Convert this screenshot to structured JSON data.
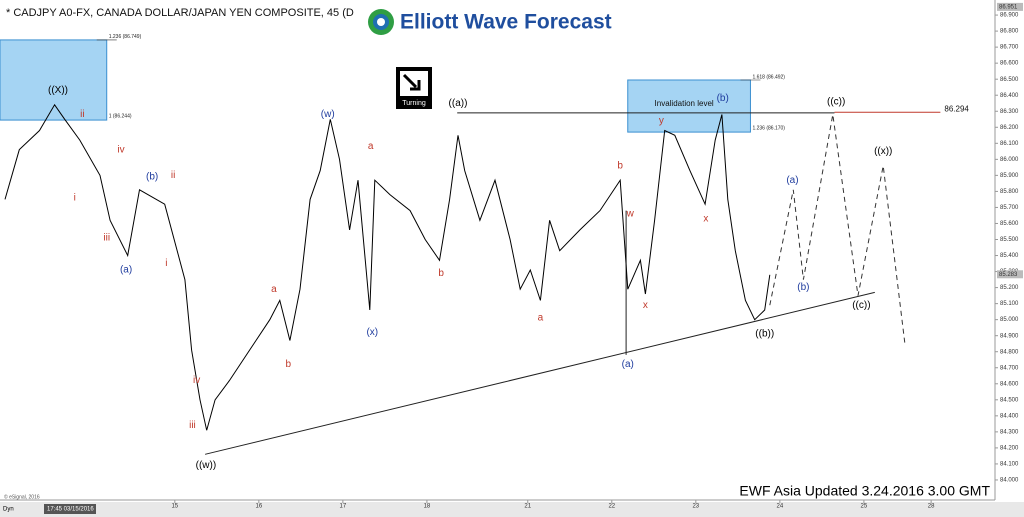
{
  "chart_data": {
    "type": "line",
    "title": "* CADJPY A0-FX, CANADA DOLLAR/JAPAN YEN COMPOSITE, 45 (D",
    "logo": "Elliott Wave Forecast",
    "badge": "Turning",
    "footer": "EWF Asia Updated 3.24.2016 3.00 GMT",
    "copyright": "© eSignal, 2016",
    "toolbar": [
      "Dyn",
      "17:45 03/15/2016"
    ],
    "x": [
      -1.02,
      -0.85,
      -0.61,
      -0.43,
      -0.31,
      -0.13,
      0.11,
      0.23,
      0.44,
      0.58,
      0.88,
      1.12,
      1.2,
      1.3,
      1.38,
      1.48,
      1.65,
      1.89,
      2.13,
      2.25,
      2.37,
      2.49,
      2.61,
      2.73,
      2.85,
      2.96,
      3.08,
      3.18,
      3.32,
      3.38,
      3.56,
      3.8,
      3.98,
      4.15,
      4.27,
      4.37,
      4.45,
      4.63,
      4.81,
      4.99,
      5.11,
      5.23,
      5.35,
      5.46,
      5.58,
      5.82,
      6.06,
      6.3,
      6.39,
      6.54,
      6.6,
      6.71,
      6.83,
      6.95,
      7.13,
      7.31,
      7.43,
      7.51,
      7.58,
      7.67,
      7.79,
      7.9,
      8.02,
      8.08
    ],
    "series": [
      {
        "color": "#000000",
        "values": [
          85.75,
          86.06,
          86.18,
          86.34,
          86.25,
          86.12,
          85.9,
          85.62,
          85.4,
          85.81,
          85.72,
          85.25,
          84.81,
          84.5,
          84.31,
          84.5,
          84.62,
          84.81,
          85,
          85.12,
          84.87,
          85.19,
          85.75,
          85.93,
          86.25,
          86,
          85.56,
          85.87,
          85.06,
          85.87,
          85.78,
          85.68,
          85.5,
          85.37,
          85.75,
          86.15,
          85.93,
          85.62,
          85.87,
          85.5,
          85.19,
          85.31,
          85.12,
          85.62,
          85.43,
          85.56,
          85.68,
          85.87,
          85.19,
          85.37,
          85.16,
          85.62,
          86.18,
          86.15,
          85.93,
          85.72,
          86.12,
          86.28,
          85.75,
          85.43,
          85.12,
          85,
          85.06,
          85.28
        ]
      }
    ],
    "projection": {
      "color": "#333333",
      "x": [
        8.08,
        8.36,
        8.48,
        8.83,
        9.13,
        9.43,
        9.69
      ],
      "values": [
        85.09,
        85.81,
        85.25,
        86.28,
        85.15,
        85.96,
        84.84
      ]
    },
    "xlim": [
      -1.08,
      10.76
    ],
    "ylim": [
      83.875,
      86.994
    ],
    "xticks": [
      {
        "value": 1,
        "label": "15"
      },
      {
        "value": 2,
        "label": "16"
      },
      {
        "value": 3,
        "label": "17"
      },
      {
        "value": 4,
        "label": "18"
      },
      {
        "value": 5.2,
        "label": "21"
      },
      {
        "value": 6.2,
        "label": "22"
      },
      {
        "value": 7.2,
        "label": "23"
      },
      {
        "value": 8.2,
        "label": "24"
      },
      {
        "value": 9.2,
        "label": "25"
      },
      {
        "value": 10,
        "label": "28"
      }
    ],
    "yticks": [
      {
        "value": 86.9,
        "label": "86.900"
      },
      {
        "value": 86.8,
        "label": "86.800"
      },
      {
        "value": 86.7,
        "label": "86.700"
      },
      {
        "value": 86.6,
        "label": "86.600"
      },
      {
        "value": 86.5,
        "label": "86.500"
      },
      {
        "value": 86.4,
        "label": "86.400"
      },
      {
        "value": 86.3,
        "label": "86.300"
      },
      {
        "value": 86.2,
        "label": "86.200"
      },
      {
        "value": 86.1,
        "label": "86.100"
      },
      {
        "value": 86,
        "label": "86.000"
      },
      {
        "value": 85.9,
        "label": "85.900"
      },
      {
        "value": 85.8,
        "label": "85.800"
      },
      {
        "value": 85.7,
        "label": "85.700"
      },
      {
        "value": 85.6,
        "label": "85.600"
      },
      {
        "value": 85.5,
        "label": "85.500"
      },
      {
        "value": 85.4,
        "label": "85.400"
      },
      {
        "value": 85.3,
        "label": "85.300"
      },
      {
        "value": 85.2,
        "label": "85.200"
      },
      {
        "value": 85.1,
        "label": "85.100"
      },
      {
        "value": 85,
        "label": "85.000"
      },
      {
        "value": 84.9,
        "label": "84.900"
      },
      {
        "value": 84.8,
        "label": "84.800"
      },
      {
        "value": 84.7,
        "label": "84.700"
      },
      {
        "value": 84.6,
        "label": "84.600"
      },
      {
        "value": 84.5,
        "label": "84.500"
      },
      {
        "value": 84.4,
        "label": "84.400"
      },
      {
        "value": 84.3,
        "label": "84.300"
      },
      {
        "value": 84.2,
        "label": "84.200"
      },
      {
        "value": 84.1,
        "label": "84.100"
      },
      {
        "value": 84,
        "label": "84.000"
      }
    ],
    "price_tags": [
      86.951,
      85.283
    ],
    "trendlines": [
      {
        "x": [
          1.36,
          9.33
        ],
        "values": [
          84.16,
          85.17
        ]
      },
      {
        "x": [
          6.37,
          6.37
        ],
        "values": [
          85.68,
          84.78
        ]
      },
      {
        "x": [
          4.36,
          8.85
        ],
        "values": [
          86.29,
          86.29
        ]
      }
    ],
    "level": {
      "x": [
        8.85,
        10.11
      ],
      "value": 86.294,
      "color": "#c0392b"
    },
    "zones": [
      {
        "x": [
          -1.08,
          0.19
        ],
        "y": [
          86.245,
          86.745
        ],
        "top_label": "1.236 (86.749)",
        "bottom_label": "1 (86.244)"
      },
      {
        "x": [
          6.39,
          7.85
        ],
        "y": [
          86.17,
          86.495
        ],
        "top_label": "1.618 (86.492)",
        "label": "Invalidation level",
        "bottom_label": "1.236 (86.170)"
      }
    ],
    "annotations": [
      {
        "label": "((X))",
        "color": "#000000",
        "x": -0.39,
        "y": 86.43
      },
      {
        "label": "ii",
        "color": "#c0392b",
        "x": -0.1,
        "y": 86.28
      },
      {
        "label": "i",
        "color": "#c0392b",
        "x": -0.19,
        "y": 85.76
      },
      {
        "label": "iv",
        "color": "#c0392b",
        "x": 0.36,
        "y": 86.06
      },
      {
        "label": "iii",
        "color": "#c0392b",
        "x": 0.19,
        "y": 85.51
      },
      {
        "label": "(a)",
        "color": "#1f3c9e",
        "x": 0.42,
        "y": 85.31
      },
      {
        "label": "(b)",
        "color": "#1f3c9e",
        "x": 0.73,
        "y": 85.89
      },
      {
        "label": "ii",
        "color": "#c0392b",
        "x": 0.98,
        "y": 85.9
      },
      {
        "label": "i",
        "color": "#c0392b",
        "x": 0.9,
        "y": 85.35
      },
      {
        "label": "iv",
        "color": "#c0392b",
        "x": 1.26,
        "y": 84.62
      },
      {
        "label": "iii",
        "color": "#c0392b",
        "x": 1.21,
        "y": 84.34
      },
      {
        "label": "((w))",
        "color": "#000000",
        "x": 1.37,
        "y": 84.09
      },
      {
        "label": "a",
        "color": "#c0392b",
        "x": 2.18,
        "y": 85.19
      },
      {
        "label": "b",
        "color": "#c0392b",
        "x": 2.35,
        "y": 84.72
      },
      {
        "label": "(w)",
        "color": "#1f3c9e",
        "x": 2.82,
        "y": 86.28
      },
      {
        "label": "a",
        "color": "#c0392b",
        "x": 3.33,
        "y": 86.08
      },
      {
        "label": "(x)",
        "color": "#1f3c9e",
        "x": 3.35,
        "y": 84.92
      },
      {
        "label": "((a))",
        "color": "#000000",
        "x": 4.37,
        "y": 86.35
      },
      {
        "label": "b",
        "color": "#c0392b",
        "x": 4.17,
        "y": 85.29
      },
      {
        "label": "a",
        "color": "#c0392b",
        "x": 5.35,
        "y": 85.01
      },
      {
        "label": "b",
        "color": "#c0392b",
        "x": 6.3,
        "y": 85.96
      },
      {
        "label": "w",
        "color": "#c0392b",
        "x": 6.42,
        "y": 85.66
      },
      {
        "label": "x",
        "color": "#c0392b",
        "x": 6.6,
        "y": 85.09
      },
      {
        "label": "(a)",
        "color": "#1f3c9e",
        "x": 6.39,
        "y": 84.72
      },
      {
        "label": "y",
        "color": "#c0392b",
        "x": 6.79,
        "y": 86.24
      },
      {
        "label": "(b)",
        "color": "#1f3c9e",
        "x": 7.52,
        "y": 86.38
      },
      {
        "label": "x",
        "color": "#c0392b",
        "x": 7.32,
        "y": 85.63
      },
      {
        "label": "(a)",
        "color": "#1f3c9e",
        "x": 8.35,
        "y": 85.87
      },
      {
        "label": "(b)",
        "color": "#1f3c9e",
        "x": 8.48,
        "y": 85.2
      },
      {
        "label": "((b))",
        "color": "#000000",
        "x": 8.02,
        "y": 84.91
      },
      {
        "label": "((c))",
        "color": "#000000",
        "x": 8.87,
        "y": 86.36
      },
      {
        "label": "((c))",
        "color": "#000000",
        "x": 9.17,
        "y": 85.09
      },
      {
        "label": "((x))",
        "color": "#000000",
        "x": 9.43,
        "y": 86.05
      }
    ]
  }
}
